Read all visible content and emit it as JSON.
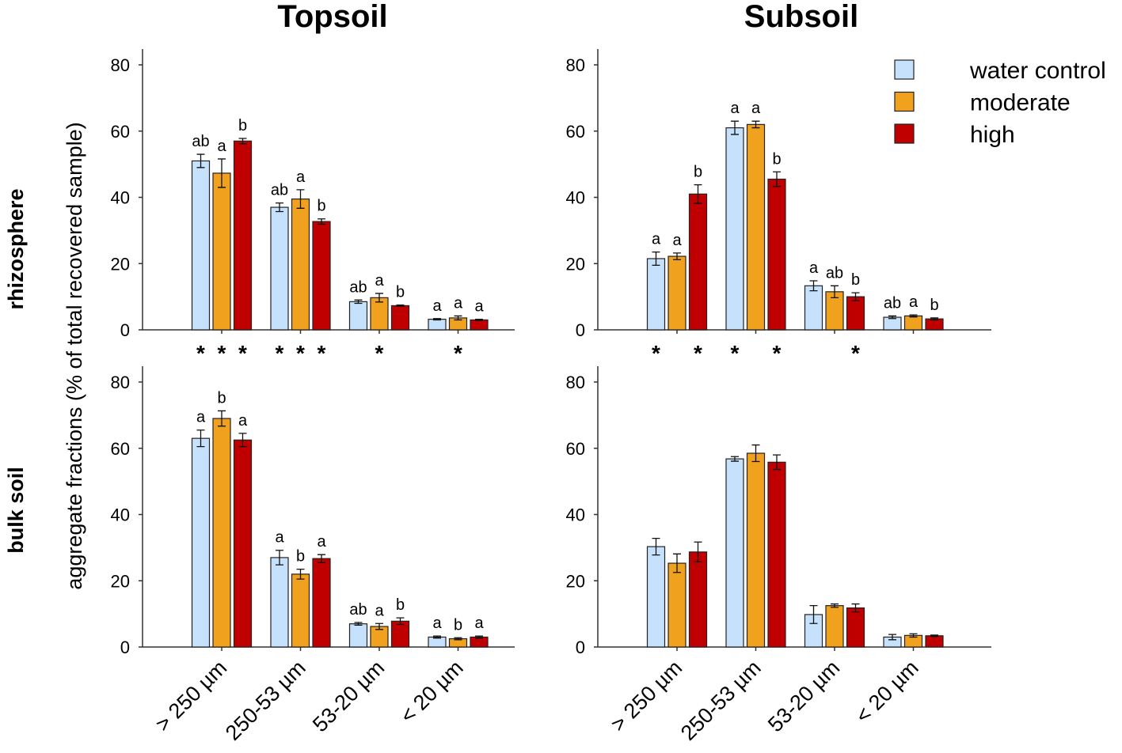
{
  "colors": {
    "water control": "#c6e1fb",
    "moderate": "#f0a11e",
    "high": "#c00000",
    "stroke": "#222222"
  },
  "column_titles": [
    "Topsoil",
    "Subsoil"
  ],
  "row_titles": [
    "rhizosphere",
    "bulk soil"
  ],
  "ylabel": "aggregate fractions (% of total recovered sample)",
  "legend": {
    "placement": "top-right",
    "entries": [
      "water control",
      "moderate",
      "high"
    ]
  },
  "chart_data": [
    {
      "type": "bar",
      "panel": "Topsoil / rhizosphere",
      "categories": [
        "> 250 µm",
        "250-53 µm",
        "53-20 µm",
        "< 20 µm"
      ],
      "ylim": [
        0,
        80
      ],
      "yticks": [
        0,
        20,
        40,
        60,
        80
      ],
      "grid": false,
      "series": [
        {
          "name": "water control",
          "values": [
            51,
            37,
            8.5,
            3.2
          ],
          "errors": [
            2,
            1.3,
            0.5,
            0.2
          ]
        },
        {
          "name": "moderate",
          "values": [
            47.3,
            39.5,
            9.7,
            3.6
          ],
          "errors": [
            4.3,
            2.8,
            1.3,
            0.6
          ]
        },
        {
          "name": "high",
          "values": [
            57,
            32.7,
            7.3,
            3.0
          ],
          "errors": [
            0.8,
            0.8,
            0.2,
            0.2
          ]
        }
      ],
      "letters": [
        [
          "ab",
          "a",
          "b"
        ],
        [
          "ab",
          "a",
          "b"
        ],
        [
          "ab",
          "a",
          "b"
        ],
        [
          "a",
          "a",
          "a"
        ]
      ],
      "stars": [
        [
          true,
          true,
          true
        ],
        [
          true,
          true,
          true
        ],
        [
          false,
          true,
          false
        ],
        [
          false,
          true,
          false
        ]
      ]
    },
    {
      "type": "bar",
      "panel": "Subsoil / rhizosphere",
      "categories": [
        "> 250 µm",
        "250-53 µm",
        "53-20 µm",
        "< 20 µm"
      ],
      "ylim": [
        0,
        80
      ],
      "yticks": [
        0,
        20,
        40,
        60,
        80
      ],
      "grid": false,
      "series": [
        {
          "name": "water control",
          "values": [
            21.5,
            61,
            13.3,
            3.8
          ],
          "errors": [
            2,
            2,
            1.5,
            0.4
          ]
        },
        {
          "name": "moderate",
          "values": [
            22.2,
            62,
            11.5,
            4.2
          ],
          "errors": [
            1,
            1,
            1.8,
            0.3
          ]
        },
        {
          "name": "high",
          "values": [
            41,
            45.5,
            10,
            3.3
          ],
          "errors": [
            2.8,
            2.2,
            1.2,
            0.3
          ]
        }
      ],
      "letters": [
        [
          "a",
          "a",
          "b"
        ],
        [
          "a",
          "a",
          "b"
        ],
        [
          "a",
          "ab",
          "b"
        ],
        [
          "ab",
          "a",
          "b"
        ]
      ],
      "stars": [
        [
          true,
          false,
          true
        ],
        [
          true,
          false,
          true
        ],
        [
          false,
          false,
          true
        ],
        [
          false,
          false,
          false
        ]
      ]
    },
    {
      "type": "bar",
      "panel": "Topsoil / bulk soil",
      "categories": [
        "> 250 µm",
        "250-53 µm",
        "53-20 µm",
        "< 20 µm"
      ],
      "ylim": [
        0,
        80
      ],
      "yticks": [
        0,
        20,
        40,
        60,
        80
      ],
      "grid": false,
      "series": [
        {
          "name": "water control",
          "values": [
            63,
            27,
            7,
            3
          ],
          "errors": [
            2.5,
            2.2,
            0.4,
            0.3
          ]
        },
        {
          "name": "moderate",
          "values": [
            69,
            22,
            6.2,
            2.5
          ],
          "errors": [
            2.3,
            1.5,
            0.9,
            0.3
          ]
        },
        {
          "name": "high",
          "values": [
            62.5,
            26.7,
            7.8,
            3
          ],
          "errors": [
            2,
            1.2,
            1,
            0.3
          ]
        }
      ],
      "letters": [
        [
          "a",
          "b",
          "a"
        ],
        [
          "a",
          "b",
          "a"
        ],
        [
          "ab",
          "a",
          "b"
        ],
        [
          "a",
          "b",
          "a"
        ]
      ],
      "stars": [
        [
          false,
          false,
          false
        ],
        [
          false,
          false,
          false
        ],
        [
          false,
          false,
          false
        ],
        [
          false,
          false,
          false
        ]
      ]
    },
    {
      "type": "bar",
      "panel": "Subsoil / bulk soil",
      "categories": [
        "> 250 µm",
        "250-53 µm",
        "53-20 µm",
        "< 20 µm"
      ],
      "ylim": [
        0,
        80
      ],
      "yticks": [
        0,
        20,
        40,
        60,
        80
      ],
      "grid": false,
      "series": [
        {
          "name": "water control",
          "values": [
            30.3,
            56.8,
            9.8,
            3
          ],
          "errors": [
            2.5,
            0.7,
            2.7,
            0.8
          ]
        },
        {
          "name": "moderate",
          "values": [
            25.3,
            58.5,
            12.5,
            3.5
          ],
          "errors": [
            2.8,
            2.5,
            0.5,
            0.5
          ]
        },
        {
          "name": "high",
          "values": [
            28.7,
            55.8,
            11.8,
            3.4
          ],
          "errors": [
            3,
            2.2,
            1.2,
            0.2
          ]
        }
      ],
      "letters": [
        [
          "",
          "",
          ""
        ],
        [
          "",
          "",
          ""
        ],
        [
          "",
          "",
          ""
        ],
        [
          "",
          "",
          ""
        ]
      ],
      "stars": [
        [
          false,
          false,
          false
        ],
        [
          false,
          false,
          false
        ],
        [
          false,
          false,
          false
        ],
        [
          false,
          false,
          false
        ]
      ]
    }
  ]
}
